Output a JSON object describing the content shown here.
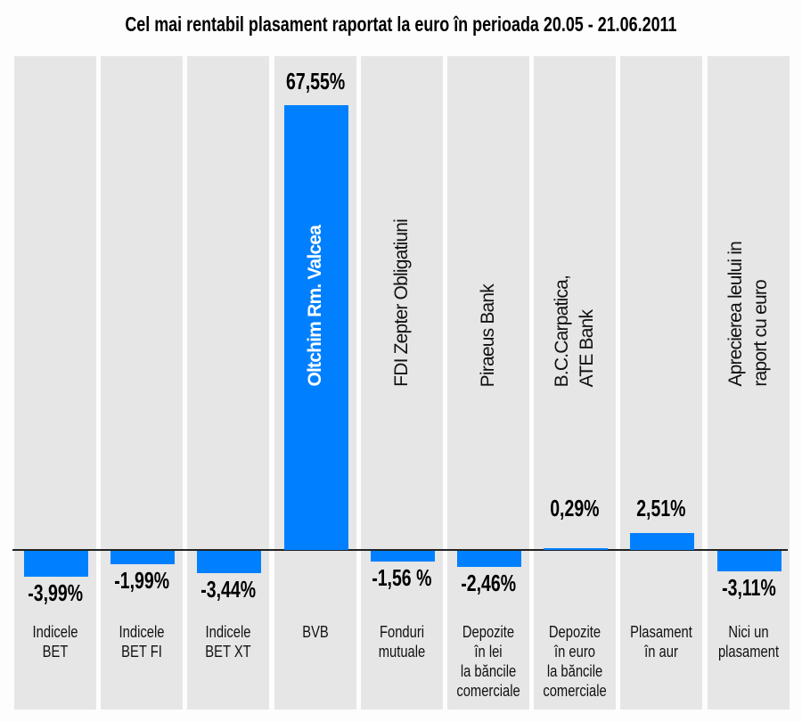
{
  "chart_data": {
    "type": "bar",
    "title": "Cel mai rentabil plasament raportat la euro în perioada 20.05 - 21.06.2011",
    "xlabel": "",
    "ylabel": "",
    "ylim": [
      -5,
      70
    ],
    "grid": false,
    "bar_color": "#0080ff",
    "panel_color": "#e6e6e6",
    "categories": [
      [
        "Indicele",
        "BET"
      ],
      [
        "Indicele",
        "BET FI"
      ],
      [
        "Indicele",
        "BET XT"
      ],
      [
        "BVB"
      ],
      [
        "Fonduri",
        "mutuale"
      ],
      [
        "Depozite",
        "în lei",
        "la băncile",
        "comerciale"
      ],
      [
        "Depozite",
        "în euro",
        "la băncile",
        "comerciale"
      ],
      [
        "Plasament",
        "în aur"
      ],
      [
        "Nici un",
        "plasament"
      ]
    ],
    "values": [
      -3.99,
      -1.99,
      -3.44,
      67.55,
      -1.56,
      -2.46,
      0.29,
      2.51,
      -3.11
    ],
    "data_labels": [
      "-3,99%",
      "-1,99%",
      "-3,44%",
      "67,55%",
      "-1,56 %",
      "-2,46%",
      "0,29%",
      "2,51%",
      "-3,11%"
    ],
    "annotations": [
      [],
      [],
      [],
      [
        "Oltchim Rm. Valcea"
      ],
      [
        "FDI Zepter Obligatiuni"
      ],
      [
        "Piraeus Bank"
      ],
      [
        "B.C.Carpatica,",
        "ATE Bank"
      ],
      [],
      [
        "Aprecierea leului in",
        "raport cu euro"
      ]
    ]
  }
}
